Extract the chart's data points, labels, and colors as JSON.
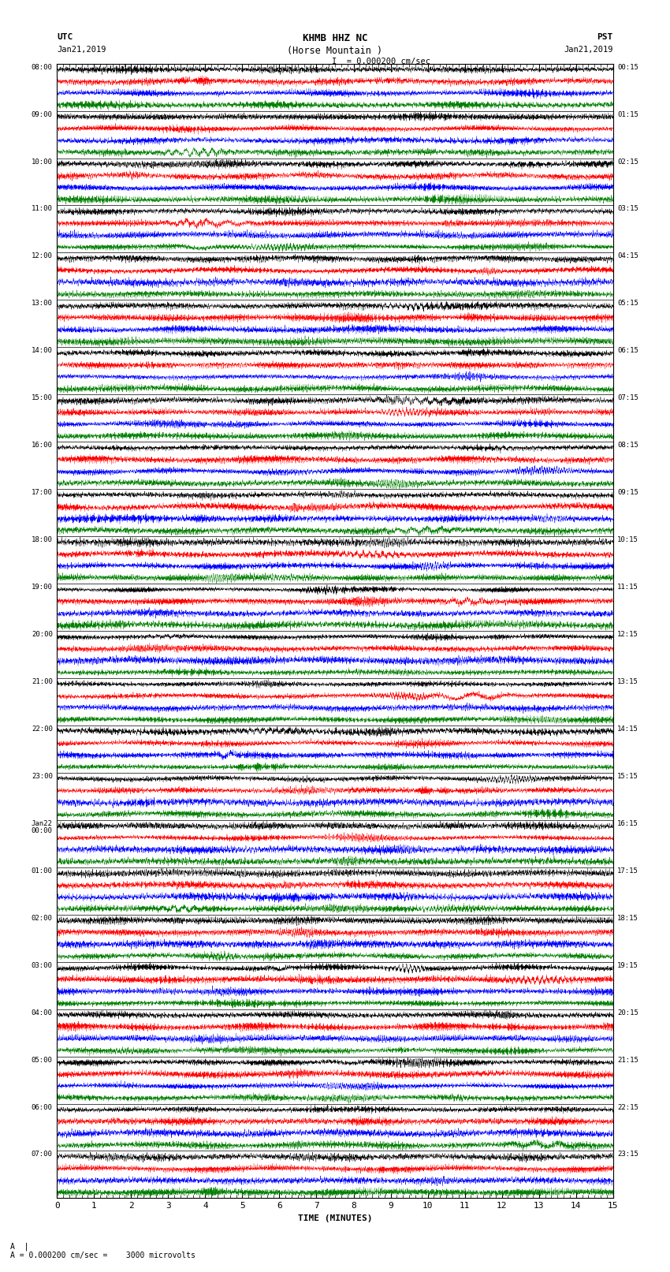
{
  "title_line1": "KHMB HHZ NC",
  "title_line2": "(Horse Mountain )",
  "scale_label": "= 0.000200 cm/sec",
  "footer_label": "A = 0.000200 cm/sec =    3000 microvolts",
  "utc_label1": "UTC",
  "utc_label2": "Jan21,2019",
  "pst_label1": "PST",
  "pst_label2": "Jan21,2019",
  "xlabel": "TIME (MINUTES)",
  "xmin": 0,
  "xmax": 15,
  "xticks": [
    0,
    1,
    2,
    3,
    4,
    5,
    6,
    7,
    8,
    9,
    10,
    11,
    12,
    13,
    14,
    15
  ],
  "n_rows": 96,
  "row_colors": [
    "black",
    "red",
    "blue",
    "green"
  ],
  "left_times": [
    "08:00",
    "",
    "",
    "",
    "09:00",
    "",
    "",
    "",
    "10:00",
    "",
    "",
    "",
    "11:00",
    "",
    "",
    "",
    "12:00",
    "",
    "",
    "",
    "13:00",
    "",
    "",
    "",
    "14:00",
    "",
    "",
    "",
    "15:00",
    "",
    "",
    "",
    "16:00",
    "",
    "",
    "",
    "17:00",
    "",
    "",
    "",
    "18:00",
    "",
    "",
    "",
    "19:00",
    "",
    "",
    "",
    "20:00",
    "",
    "",
    "",
    "21:00",
    "",
    "",
    "",
    "22:00",
    "",
    "",
    "",
    "23:00",
    "",
    "",
    "",
    "Jan22\n00:00",
    "",
    "",
    "",
    "01:00",
    "",
    "",
    "",
    "02:00",
    "",
    "",
    "",
    "03:00",
    "",
    "",
    "",
    "04:00",
    "",
    "",
    "",
    "05:00",
    "",
    "",
    "",
    "06:00",
    "",
    "",
    "",
    "07:00",
    "",
    "",
    ""
  ],
  "right_times": [
    "00:15",
    "",
    "",
    "",
    "01:15",
    "",
    "",
    "",
    "02:15",
    "",
    "",
    "",
    "03:15",
    "",
    "",
    "",
    "04:15",
    "",
    "",
    "",
    "05:15",
    "",
    "",
    "",
    "06:15",
    "",
    "",
    "",
    "07:15",
    "",
    "",
    "",
    "08:15",
    "",
    "",
    "",
    "09:15",
    "",
    "",
    "",
    "10:15",
    "",
    "",
    "",
    "11:15",
    "",
    "",
    "",
    "12:15",
    "",
    "",
    "",
    "13:15",
    "",
    "",
    "",
    "14:15",
    "",
    "",
    "",
    "15:15",
    "",
    "",
    "",
    "16:15",
    "",
    "",
    "",
    "17:15",
    "",
    "",
    "",
    "18:15",
    "",
    "",
    "",
    "19:15",
    "",
    "",
    "",
    "20:15",
    "",
    "",
    "",
    "21:15",
    "",
    "",
    "",
    "22:15",
    "",
    "",
    "",
    "23:15",
    "",
    "",
    ""
  ],
  "bg_color": "white",
  "line_width": 0.3,
  "figwidth": 8.5,
  "figheight": 16.13
}
